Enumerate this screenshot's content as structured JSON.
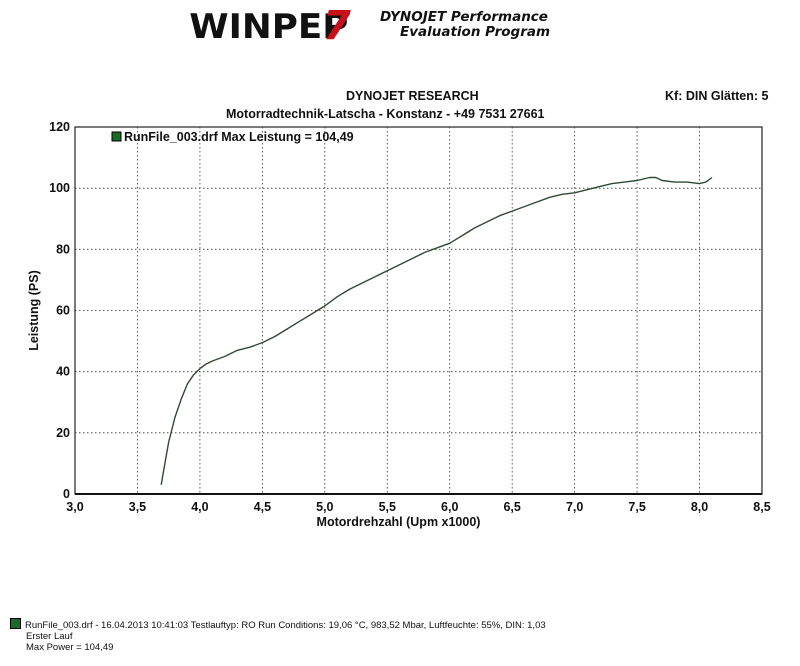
{
  "header": {
    "logo_text": "WINPEP",
    "logo_version": "7",
    "logo_tagline_1": "DYNOJET Performance",
    "logo_tagline_2": "Evaluation Program",
    "title_1": "DYNOJET RESEARCH",
    "title_2": "Motorradtechnik-Latscha - Konstanz - +49 7531 27661",
    "settings": "Kf: DIN  Glätten: 5"
  },
  "colors": {
    "series": "#2f4a34",
    "legend_swatch": "#1a6a2a",
    "grid": "#333333"
  },
  "chart_data": {
    "type": "line",
    "xlabel": "Motordrehzahl (Upm x1000)",
    "ylabel": "Leistung (PS)",
    "xlim": [
      3.0,
      8.5
    ],
    "ylim": [
      0,
      120
    ],
    "x_ticks": [
      "3,0",
      "3,5",
      "4,0",
      "4,5",
      "5,0",
      "5,5",
      "6,0",
      "6,5",
      "7,0",
      "7,5",
      "8,0",
      "8,5"
    ],
    "y_ticks": [
      "0",
      "20",
      "40",
      "60",
      "80",
      "100",
      "120"
    ],
    "grid": true,
    "legend_position": "top-left",
    "series": [
      {
        "name": "RunFile_003.drf Max Leistung = 104,49",
        "x": [
          3.69,
          3.72,
          3.75,
          3.8,
          3.85,
          3.9,
          3.95,
          4.0,
          4.05,
          4.1,
          4.2,
          4.3,
          4.4,
          4.5,
          4.6,
          4.7,
          4.8,
          4.9,
          5.0,
          5.1,
          5.2,
          5.3,
          5.4,
          5.5,
          5.6,
          5.7,
          5.8,
          5.9,
          6.0,
          6.1,
          6.2,
          6.3,
          6.4,
          6.5,
          6.6,
          6.7,
          6.8,
          6.9,
          7.0,
          7.1,
          7.2,
          7.3,
          7.4,
          7.5,
          7.6,
          7.65,
          7.7,
          7.8,
          7.9,
          8.0,
          8.05,
          8.1
        ],
        "y": [
          3,
          10,
          17,
          25,
          31,
          36,
          39,
          41,
          42.5,
          43.5,
          45,
          47,
          48,
          49.5,
          51.5,
          54,
          56.5,
          59,
          61.5,
          64.5,
          67,
          69,
          71,
          73,
          75,
          77,
          79,
          80.5,
          82,
          84.5,
          87,
          89,
          91,
          92.5,
          94,
          95.5,
          97,
          98,
          98.5,
          99.5,
          100.5,
          101.5,
          102,
          102.5,
          103.5,
          103.5,
          102.5,
          102,
          102,
          101.5,
          102,
          103.5
        ]
      }
    ]
  },
  "footer": {
    "line_1": "RunFile_003.drf - 16.04.2013 10:41:03  Testlauftyp: RO  Run Conditions: 19,06 °C, 983,52 Mbar,  Luftfeuchte: 55%, DIN: 1,03",
    "line_2": "Erster Lauf",
    "line_3": "Max Power = 104,49"
  }
}
